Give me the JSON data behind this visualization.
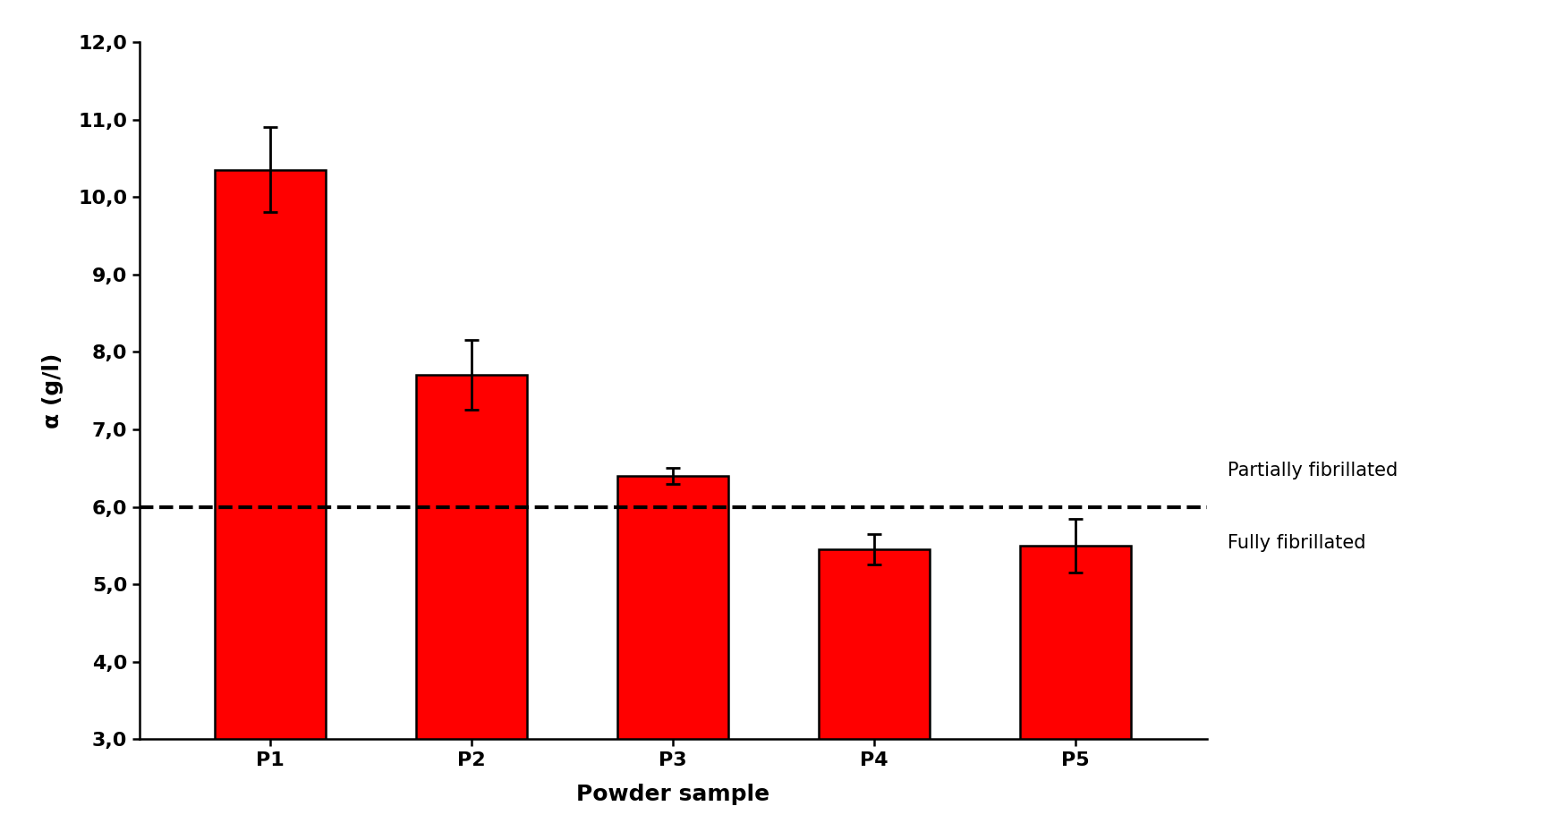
{
  "categories": [
    "P1",
    "P2",
    "P3",
    "P4",
    "P5"
  ],
  "values": [
    10.35,
    7.7,
    6.4,
    5.45,
    5.5
  ],
  "errors": [
    0.55,
    0.45,
    0.1,
    0.2,
    0.35
  ],
  "bar_color": "#FF0000",
  "bar_edgecolor": "#000000",
  "bar_linewidth": 1.8,
  "bar_width": 0.55,
  "dashed_line_y": 6.0,
  "dashed_line_color": "#000000",
  "dashed_line_lw": 3.0,
  "label_partially": "Partially fibrillated",
  "label_fully": "Fully fibrillated",
  "xlabel": "Powder sample",
  "ylabel": "α (g/l)",
  "ylim_min": 3.0,
  "ylim_max": 12.0,
  "yticks": [
    3.0,
    4.0,
    5.0,
    6.0,
    7.0,
    8.0,
    9.0,
    10.0,
    11.0,
    12.0
  ],
  "ytick_labels": [
    "3,0",
    "4,0",
    "5,0",
    "6,0",
    "7,0",
    "8,0",
    "9,0",
    "10,0",
    "11,0",
    "12,0"
  ],
  "background_color": "#ffffff",
  "label_fontsize": 18,
  "tick_fontsize": 16,
  "annotation_fontsize": 15
}
